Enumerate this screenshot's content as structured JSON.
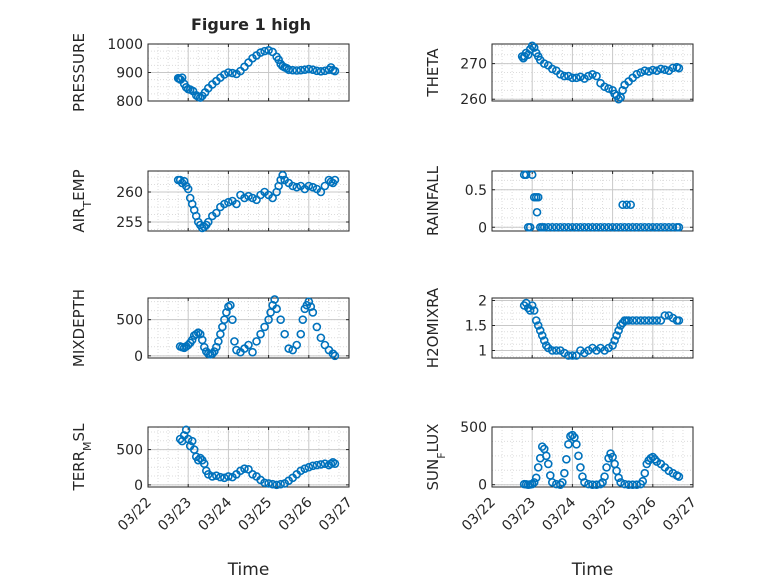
{
  "figure": {
    "title": "Figure 1 high",
    "xlabel": "Time",
    "x_ticks": [
      "03/22",
      "03/23",
      "03/24",
      "03/25",
      "03/26",
      "03/27"
    ],
    "marker_color": "#0072BD",
    "grid_color": "#c8c8c8"
  },
  "chart_data": [
    {
      "type": "scatter",
      "ylabel": "PRESSURE",
      "ylim": [
        800,
        1000
      ],
      "yticks": [
        "800",
        "900",
        "1000"
      ],
      "xlim": [
        "03/22",
        "03/27"
      ],
      "grid": true,
      "series": [
        {
          "x": [
            0.75,
            0.78,
            0.81,
            0.85,
            0.9,
            0.95,
            1.0,
            1.05,
            1.12,
            1.2,
            1.25,
            1.3,
            1.35,
            1.42,
            1.5,
            1.6,
            1.7,
            1.8,
            1.9,
            2.0,
            2.1,
            2.2,
            2.3,
            2.4,
            2.5,
            2.6,
            2.7,
            2.8,
            2.9,
            3.0,
            3.1,
            3.2,
            3.25,
            3.3,
            3.35,
            3.4,
            3.45,
            3.5,
            3.6,
            3.7,
            3.8,
            3.9,
            4.0,
            4.1,
            4.2,
            4.3,
            4.4,
            4.5,
            4.55,
            4.6,
            4.65
          ],
          "y": [
            880,
            878,
            875,
            882,
            860,
            848,
            842,
            840,
            835,
            820,
            815,
            812,
            818,
            830,
            845,
            858,
            870,
            882,
            893,
            900,
            898,
            895,
            905,
            920,
            935,
            950,
            960,
            970,
            975,
            978,
            972,
            955,
            945,
            930,
            922,
            918,
            915,
            910,
            908,
            907,
            908,
            910,
            912,
            910,
            906,
            904,
            906,
            910,
            918,
            908,
            905
          ]
        }
      ]
    },
    {
      "type": "scatter",
      "ylabel": "THETA",
      "ylim": [
        259.5,
        275.5
      ],
      "yticks": [
        "260",
        "270"
      ],
      "xlim": [
        "03/22",
        "03/27"
      ],
      "grid": true,
      "series": [
        {
          "x": [
            0.75,
            0.78,
            0.81,
            0.85,
            0.9,
            0.95,
            1.0,
            1.05,
            1.1,
            1.15,
            1.2,
            1.3,
            1.4,
            1.5,
            1.6,
            1.7,
            1.8,
            1.9,
            2.0,
            2.1,
            2.2,
            2.3,
            2.4,
            2.5,
            2.6,
            2.7,
            2.8,
            2.9,
            3.0,
            3.05,
            3.1,
            3.15,
            3.2,
            3.25,
            3.3,
            3.4,
            3.5,
            3.6,
            3.7,
            3.8,
            3.9,
            4.0,
            4.1,
            4.2,
            4.3,
            4.4,
            4.5,
            4.6,
            4.65
          ],
          "y": [
            272,
            271.5,
            272,
            273,
            272.5,
            274,
            275,
            274.5,
            273,
            272,
            271,
            270,
            269.5,
            268.5,
            268,
            267,
            266.5,
            266.5,
            266,
            266,
            266.3,
            265.8,
            266.5,
            267,
            266.5,
            264.5,
            263.5,
            263,
            262.5,
            261.5,
            261,
            260,
            260.5,
            262.5,
            264,
            265,
            266,
            267,
            267.5,
            268,
            267.8,
            268.2,
            268,
            268.5,
            268.3,
            268,
            268.8,
            269,
            268.7
          ]
        }
      ]
    },
    {
      "type": "scatter",
      "ylabel": "AIR_T_EMP",
      "ylim": [
        253.5,
        263.5
      ],
      "yticks": [
        "255",
        "260"
      ],
      "xlim": [
        "03/22",
        "03/27"
      ],
      "grid": true,
      "series": [
        {
          "x": [
            0.75,
            0.8,
            0.85,
            0.9,
            0.95,
            1.0,
            1.05,
            1.1,
            1.15,
            1.2,
            1.25,
            1.3,
            1.35,
            1.4,
            1.45,
            1.5,
            1.6,
            1.7,
            1.8,
            1.9,
            2.0,
            2.1,
            2.2,
            2.3,
            2.4,
            2.5,
            2.6,
            2.7,
            2.8,
            2.9,
            3.0,
            3.1,
            3.2,
            3.25,
            3.3,
            3.35,
            3.4,
            3.5,
            3.6,
            3.7,
            3.8,
            3.9,
            4.0,
            4.1,
            4.2,
            4.3,
            4.4,
            4.5,
            4.55,
            4.6,
            4.65
          ],
          "y": [
            262,
            262,
            261.5,
            261.8,
            261,
            260.5,
            259,
            258,
            257,
            256,
            255,
            254.5,
            254,
            254.2,
            254.5,
            255,
            256,
            256.5,
            257.5,
            258,
            258.3,
            258.5,
            258,
            259.5,
            259,
            259.3,
            259,
            258.7,
            259.5,
            260,
            259.5,
            259,
            260,
            261,
            262,
            262.8,
            262,
            261.5,
            261,
            260.8,
            261,
            260.5,
            261,
            260.8,
            260.5,
            260,
            261,
            262,
            261.7,
            261.5,
            262
          ]
        }
      ]
    },
    {
      "type": "scatter",
      "ylabel": "RAINFALL",
      "ylim": [
        -0.05,
        0.75
      ],
      "yticks": [
        "0",
        "0.5"
      ],
      "xlim": [
        "03/22",
        "03/27"
      ],
      "grid": true,
      "series": [
        {
          "x": [
            0.8,
            0.85,
            0.9,
            0.95,
            1.0,
            1.05,
            1.1,
            1.12,
            1.15,
            1.2,
            1.25,
            3.25,
            3.35,
            3.45,
            3.5,
            1.3,
            1.4,
            1.5,
            1.6,
            1.7,
            1.8,
            1.9,
            2.0,
            2.1,
            2.2,
            2.3,
            2.4,
            2.5,
            2.6,
            2.7,
            2.8,
            2.9,
            3.0,
            3.1,
            3.2,
            3.3,
            3.4,
            3.6,
            3.7,
            3.8,
            3.9,
            4.0,
            4.1,
            4.2,
            4.3,
            4.4,
            4.5,
            4.6,
            4.65
          ],
          "y": [
            0.7,
            0.7,
            0,
            0,
            0.7,
            0.4,
            0.4,
            0.2,
            0.4,
            0,
            0,
            0.3,
            0.3,
            0.3,
            0,
            0,
            0,
            0,
            0,
            0,
            0,
            0,
            0,
            0,
            0,
            0,
            0,
            0,
            0,
            0,
            0,
            0,
            0,
            0,
            0,
            0,
            0,
            0,
            0,
            0,
            0,
            0,
            0,
            0,
            0,
            0,
            0,
            0,
            0
          ]
        }
      ]
    },
    {
      "type": "scatter",
      "ylabel": "MIXDEPTH",
      "ylim": [
        -30,
        800
      ],
      "yticks": [
        "0",
        "500"
      ],
      "xlim": [
        "03/22",
        "03/27"
      ],
      "grid": true,
      "series": [
        {
          "x": [
            0.8,
            0.85,
            0.9,
            0.95,
            1.0,
            1.05,
            1.1,
            1.15,
            1.2,
            1.25,
            1.3,
            1.35,
            1.4,
            1.45,
            1.5,
            1.55,
            1.6,
            1.65,
            1.7,
            1.75,
            1.8,
            1.85,
            1.9,
            1.95,
            2.0,
            2.05,
            2.1,
            2.15,
            2.2,
            2.3,
            2.4,
            2.5,
            2.6,
            2.7,
            2.8,
            2.9,
            3.0,
            3.05,
            3.1,
            3.15,
            3.2,
            3.3,
            3.4,
            3.5,
            3.6,
            3.7,
            3.8,
            3.85,
            3.9,
            3.95,
            4.0,
            4.05,
            4.1,
            4.2,
            4.3,
            4.4,
            4.5,
            4.6,
            4.65
          ],
          "y": [
            130,
            120,
            110,
            130,
            150,
            180,
            220,
            280,
            300,
            320,
            300,
            220,
            120,
            60,
            30,
            20,
            30,
            60,
            120,
            200,
            300,
            400,
            500,
            600,
            680,
            700,
            500,
            200,
            80,
            50,
            100,
            150,
            50,
            200,
            300,
            400,
            500,
            600,
            700,
            780,
            650,
            500,
            300,
            100,
            80,
            150,
            300,
            500,
            650,
            700,
            750,
            680,
            600,
            400,
            250,
            150,
            80,
            30,
            0
          ]
        }
      ]
    },
    {
      "type": "scatter",
      "ylabel": "H2OMIXRA",
      "ylim": [
        0.85,
        2.05
      ],
      "yticks": [
        "1",
        "1.5",
        "2"
      ],
      "xlim": [
        "03/22",
        "03/27"
      ],
      "grid": true,
      "series": [
        {
          "x": [
            0.8,
            0.85,
            0.9,
            0.95,
            1.0,
            1.05,
            1.1,
            1.15,
            1.2,
            1.25,
            1.3,
            1.35,
            1.4,
            1.5,
            1.6,
            1.7,
            1.8,
            1.9,
            2.0,
            2.1,
            2.2,
            2.3,
            2.4,
            2.5,
            2.6,
            2.7,
            2.8,
            2.9,
            3.0,
            3.05,
            3.1,
            3.15,
            3.2,
            3.25,
            3.3,
            3.35,
            3.4,
            3.5,
            3.6,
            3.7,
            3.8,
            3.9,
            4.0,
            4.1,
            4.2,
            4.3,
            4.4,
            4.5,
            4.6,
            4.65
          ],
          "y": [
            1.9,
            1.95,
            1.85,
            1.8,
            1.9,
            1.8,
            1.6,
            1.5,
            1.4,
            1.3,
            1.2,
            1.1,
            1.05,
            1.0,
            1.0,
            1.0,
            0.95,
            0.9,
            0.9,
            0.9,
            1.0,
            0.95,
            1.0,
            1.05,
            1.0,
            1.05,
            1.0,
            1.05,
            1.1,
            1.2,
            1.3,
            1.4,
            1.5,
            1.55,
            1.6,
            1.6,
            1.6,
            1.6,
            1.6,
            1.6,
            1.6,
            1.6,
            1.6,
            1.6,
            1.6,
            1.7,
            1.7,
            1.65,
            1.6,
            1.6
          ]
        }
      ]
    },
    {
      "type": "scatter",
      "ylabel": "TERR_M_SL",
      "ylim": [
        -30,
        820
      ],
      "yticks": [
        "0",
        "500"
      ],
      "xlim": [
        "03/22",
        "03/27"
      ],
      "grid": true,
      "series": [
        {
          "x": [
            0.8,
            0.85,
            0.9,
            0.95,
            1.0,
            1.05,
            1.1,
            1.15,
            1.2,
            1.25,
            1.3,
            1.35,
            1.4,
            1.45,
            1.5,
            1.6,
            1.7,
            1.8,
            1.9,
            2.0,
            2.1,
            2.2,
            2.3,
            2.4,
            2.5,
            2.6,
            2.7,
            2.8,
            2.9,
            3.0,
            3.1,
            3.2,
            3.3,
            3.4,
            3.5,
            3.6,
            3.7,
            3.8,
            3.9,
            4.0,
            4.1,
            4.2,
            4.3,
            4.4,
            4.5,
            4.55,
            4.6,
            4.65
          ],
          "y": [
            650,
            620,
            700,
            780,
            650,
            550,
            620,
            500,
            400,
            350,
            380,
            350,
            300,
            200,
            150,
            120,
            130,
            110,
            100,
            120,
            110,
            150,
            200,
            230,
            220,
            150,
            120,
            70,
            30,
            20,
            10,
            0,
            10,
            20,
            60,
            100,
            150,
            200,
            230,
            250,
            270,
            280,
            290,
            300,
            280,
            300,
            320,
            300
          ]
        }
      ]
    },
    {
      "type": "scatter",
      "ylabel": "SUN_F_LUX",
      "ylim": [
        -20,
        500
      ],
      "yticks": [
        "0",
        "500"
      ],
      "xlim": [
        "03/22",
        "03/27"
      ],
      "grid": true,
      "series": [
        {
          "x": [
            0.8,
            0.85,
            0.9,
            0.95,
            1.0,
            1.05,
            1.1,
            1.15,
            1.2,
            1.25,
            1.3,
            1.35,
            1.4,
            1.45,
            1.5,
            1.6,
            1.7,
            1.75,
            1.8,
            1.85,
            1.9,
            1.95,
            2.0,
            2.05,
            2.1,
            2.15,
            2.2,
            2.25,
            2.3,
            2.4,
            2.5,
            2.6,
            2.7,
            2.75,
            2.8,
            2.85,
            2.9,
            2.95,
            3.0,
            3.05,
            3.1,
            3.15,
            3.2,
            3.3,
            3.4,
            3.5,
            3.6,
            3.7,
            3.75,
            3.8,
            3.85,
            3.9,
            3.95,
            4.0,
            4.05,
            4.1,
            4.2,
            4.3,
            4.4,
            4.5,
            4.6,
            4.65
          ],
          "y": [
            5,
            3,
            0,
            2,
            5,
            20,
            60,
            150,
            230,
            330,
            310,
            250,
            180,
            80,
            20,
            5,
            0,
            20,
            100,
            220,
            350,
            420,
            430,
            410,
            350,
            250,
            150,
            70,
            20,
            5,
            0,
            0,
            5,
            20,
            70,
            150,
            230,
            270,
            240,
            180,
            120,
            60,
            20,
            5,
            0,
            0,
            0,
            5,
            30,
            100,
            180,
            210,
            230,
            240,
            220,
            200,
            180,
            150,
            120,
            100,
            80,
            70
          ]
        }
      ]
    }
  ]
}
